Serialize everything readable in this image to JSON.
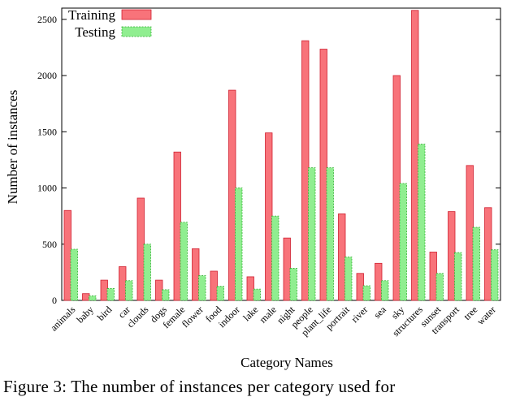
{
  "chart_data": {
    "type": "bar",
    "xlabel": "Category Names",
    "ylabel": "Number of instances",
    "ylim": [
      0,
      2600
    ],
    "yticks": [
      0,
      500,
      1000,
      1500,
      2000,
      2500
    ],
    "legend_placement": "top-left",
    "categories": [
      "animals",
      "baby",
      "bird",
      "car",
      "clouds",
      "dogs",
      "female",
      "flower",
      "food",
      "indoor",
      "lake",
      "male",
      "night",
      "people",
      "plant_life",
      "portrait",
      "river",
      "sea",
      "sky",
      "structures",
      "sunset",
      "transport",
      "tree",
      "water"
    ],
    "series": [
      {
        "name": "Training",
        "color": "#f8737a",
        "values": [
          800,
          60,
          180,
          300,
          910,
          180,
          1320,
          460,
          260,
          1870,
          210,
          1490,
          555,
          2310,
          2235,
          770,
          240,
          330,
          2000,
          2580,
          430,
          790,
          1200,
          825
        ]
      },
      {
        "name": "Testing",
        "color": "#90ee90",
        "values": [
          455,
          40,
          105,
          175,
          500,
          95,
          695,
          220,
          125,
          1000,
          100,
          750,
          285,
          1180,
          1180,
          385,
          130,
          175,
          1040,
          1390,
          240,
          425,
          650,
          450
        ]
      }
    ]
  },
  "caption": "Figure 3:  The number of instances per category used for"
}
